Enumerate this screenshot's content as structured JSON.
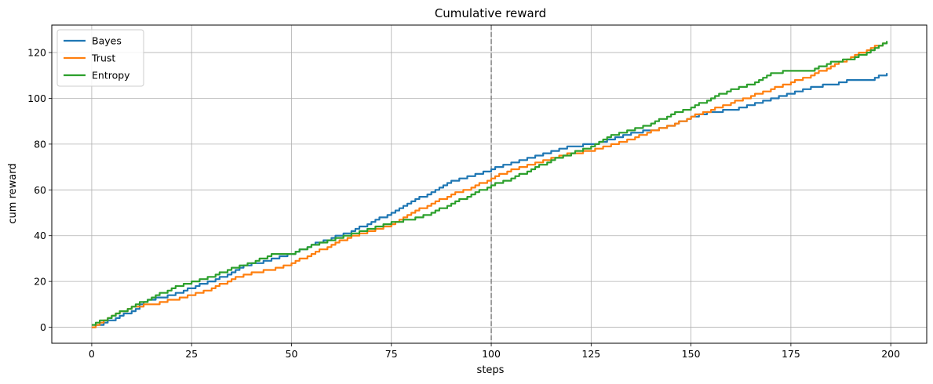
{
  "chart_data": {
    "type": "line",
    "title": "Cumulative reward",
    "xlabel": "steps",
    "ylabel": "cum reward",
    "xlim": [
      -10,
      209
    ],
    "ylim": [
      -7,
      132
    ],
    "xticks": [
      0,
      25,
      50,
      75,
      100,
      125,
      150,
      175,
      200
    ],
    "yticks": [
      0,
      20,
      40,
      60,
      80,
      100,
      120
    ],
    "grid": true,
    "legend": "top-left",
    "vline": {
      "x": 100,
      "style": "dashed",
      "color": "#808080"
    },
    "series": [
      {
        "name": "Bayes",
        "color": "#1f77b4",
        "points": [
          [
            0,
            0
          ],
          [
            6,
            4
          ],
          [
            10,
            7
          ],
          [
            14,
            12
          ],
          [
            18,
            13
          ],
          [
            22,
            15
          ],
          [
            26,
            18
          ],
          [
            30,
            20
          ],
          [
            34,
            23
          ],
          [
            38,
            27
          ],
          [
            42,
            28
          ],
          [
            46,
            30
          ],
          [
            50,
            32
          ],
          [
            55,
            36
          ],
          [
            60,
            39
          ],
          [
            65,
            42
          ],
          [
            70,
            46
          ],
          [
            75,
            50
          ],
          [
            80,
            55
          ],
          [
            85,
            59
          ],
          [
            90,
            64
          ],
          [
            95,
            66
          ],
          [
            100,
            69
          ],
          [
            105,
            72
          ],
          [
            110,
            74
          ],
          [
            115,
            77
          ],
          [
            120,
            79
          ],
          [
            125,
            80
          ],
          [
            130,
            82
          ],
          [
            135,
            85
          ],
          [
            140,
            86
          ],
          [
            145,
            88
          ],
          [
            150,
            92
          ],
          [
            155,
            94
          ],
          [
            160,
            95
          ],
          [
            165,
            97
          ],
          [
            170,
            100
          ],
          [
            175,
            102
          ],
          [
            180,
            105
          ],
          [
            185,
            106
          ],
          [
            190,
            108
          ],
          [
            195,
            108
          ],
          [
            199,
            111
          ]
        ]
      },
      {
        "name": "Trust",
        "color": "#ff7f0e",
        "points": [
          [
            0,
            0
          ],
          [
            5,
            5
          ],
          [
            10,
            9
          ],
          [
            15,
            10
          ],
          [
            20,
            12
          ],
          [
            25,
            14
          ],
          [
            30,
            17
          ],
          [
            35,
            21
          ],
          [
            40,
            24
          ],
          [
            45,
            25
          ],
          [
            50,
            28
          ],
          [
            55,
            32
          ],
          [
            60,
            36
          ],
          [
            65,
            40
          ],
          [
            70,
            42
          ],
          [
            75,
            45
          ],
          [
            80,
            50
          ],
          [
            85,
            54
          ],
          [
            90,
            58
          ],
          [
            95,
            61
          ],
          [
            100,
            65
          ],
          [
            105,
            69
          ],
          [
            110,
            71
          ],
          [
            115,
            74
          ],
          [
            120,
            76
          ],
          [
            125,
            77
          ],
          [
            130,
            80
          ],
          [
            135,
            82
          ],
          [
            140,
            86
          ],
          [
            145,
            88
          ],
          [
            150,
            92
          ],
          [
            155,
            95
          ],
          [
            160,
            98
          ],
          [
            165,
            101
          ],
          [
            170,
            104
          ],
          [
            175,
            107
          ],
          [
            180,
            110
          ],
          [
            185,
            114
          ],
          [
            190,
            118
          ],
          [
            195,
            122
          ],
          [
            199,
            124
          ]
        ]
      },
      {
        "name": "Entropy",
        "color": "#2ca02c",
        "points": [
          [
            0,
            1
          ],
          [
            5,
            5
          ],
          [
            10,
            9
          ],
          [
            15,
            13
          ],
          [
            20,
            17
          ],
          [
            25,
            20
          ],
          [
            30,
            22
          ],
          [
            35,
            26
          ],
          [
            40,
            28
          ],
          [
            45,
            32
          ],
          [
            50,
            32
          ],
          [
            55,
            36
          ],
          [
            60,
            38
          ],
          [
            65,
            41
          ],
          [
            70,
            43
          ],
          [
            75,
            46
          ],
          [
            80,
            47
          ],
          [
            85,
            50
          ],
          [
            90,
            54
          ],
          [
            95,
            58
          ],
          [
            100,
            62
          ],
          [
            105,
            65
          ],
          [
            110,
            69
          ],
          [
            115,
            73
          ],
          [
            120,
            76
          ],
          [
            125,
            79
          ],
          [
            130,
            84
          ],
          [
            135,
            86
          ],
          [
            140,
            89
          ],
          [
            145,
            93
          ],
          [
            150,
            96
          ],
          [
            155,
            100
          ],
          [
            160,
            104
          ],
          [
            165,
            106
          ],
          [
            170,
            111
          ],
          [
            175,
            112
          ],
          [
            180,
            112
          ],
          [
            185,
            116
          ],
          [
            190,
            117
          ],
          [
            195,
            121
          ],
          [
            199,
            125
          ]
        ]
      }
    ]
  }
}
